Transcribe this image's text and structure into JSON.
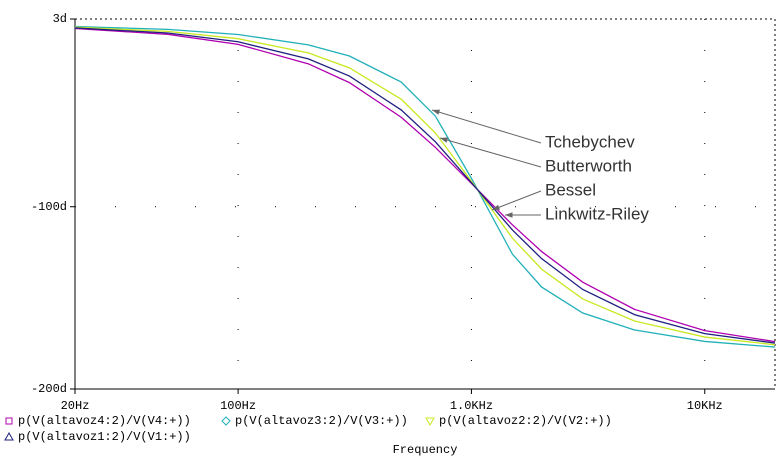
{
  "chart_data": {
    "type": "line",
    "x": [
      20,
      50,
      100,
      200,
      300,
      500,
      700,
      1000,
      1500,
      2000,
      3000,
      5000,
      10000,
      20000
    ],
    "xlim": [
      20,
      20000
    ],
    "xscale": "log",
    "xticks": [
      {
        "value": 20,
        "label": "20Hz"
      },
      {
        "value": 100,
        "label": "100Hz"
      },
      {
        "value": 1000,
        "label": "1.0KHz"
      },
      {
        "value": 10000,
        "label": "10KHz"
      }
    ],
    "xlabel": "Frequency",
    "ylim": [
      -200,
      3
    ],
    "yticks": [
      {
        "value": 3,
        "label": "3d"
      },
      {
        "value": -100,
        "label": "-100d"
      },
      {
        "value": -200,
        "label": "-200d"
      }
    ],
    "grid": true,
    "series": [
      {
        "name": "p(V(altavoz4:2)/V(V4:+))",
        "color": "#b000b0",
        "marker": "square",
        "values": [
          -2.2,
          -5.4,
          -10.9,
          -21.6,
          -31.9,
          -50.9,
          -67.4,
          -87.2,
          -110,
          -124.6,
          -141.4,
          -156.3,
          -168,
          -174
        ]
      },
      {
        "name": "p(V(altavoz3:2)/V(V3:+))",
        "color": "#20b0b8",
        "marker": "diamond",
        "values": [
          -1.1,
          -2.7,
          -5.5,
          -11.2,
          -17.3,
          -31.6,
          -50.2,
          -84.4,
          -126.1,
          -144.1,
          -158.3,
          -167.6,
          -173.9,
          -177
        ]
      },
      {
        "name": "p(V(altavoz2:2)/V(V2:+))",
        "color": "#c8e820",
        "marker": "triangle-down",
        "values": [
          -1.5,
          -3.8,
          -7.8,
          -15.6,
          -23.8,
          -41,
          -59.5,
          -86,
          -117.3,
          -134.3,
          -150.6,
          -162.7,
          -171.5,
          -175.7
        ]
      },
      {
        "name": "p(V(altavoz1:2)/V(V1:+))",
        "color": "#202080",
        "marker": "triangle-up",
        "values": [
          -1.9,
          -4.7,
          -9.5,
          -18.9,
          -28.3,
          -46.9,
          -64.3,
          -86.8,
          -112.8,
          -128.5,
          -145.4,
          -159.2,
          -169.6,
          -174.8
        ]
      }
    ],
    "annotations": [
      "Tchebychev",
      "Butterworth",
      "Bessel",
      "Linkwitz-Riley"
    ]
  }
}
